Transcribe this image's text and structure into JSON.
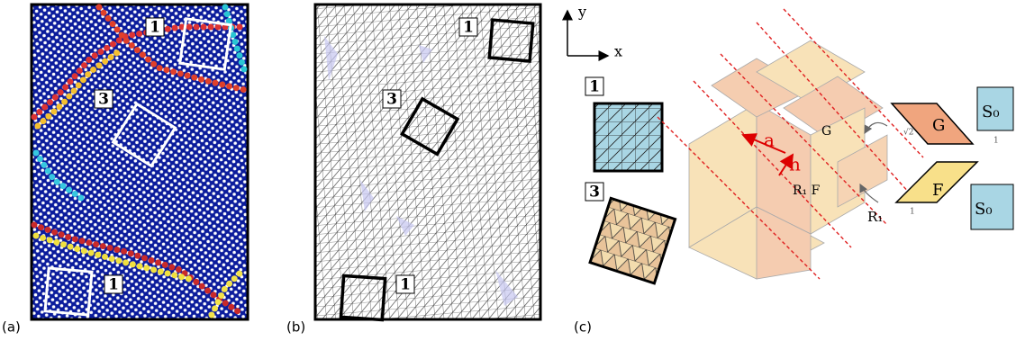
{
  "panels": [
    {
      "label": "(a)",
      "boxes": [
        "1",
        "3",
        "1"
      ]
    },
    {
      "label": "(b)",
      "boxes": [
        "1",
        "3",
        "1"
      ]
    },
    {
      "label": "(c)",
      "axes": {
        "y": "y",
        "x": "x"
      },
      "insets": [
        "1",
        "3"
      ],
      "vectors": {
        "a": "a",
        "n": "n"
      },
      "surface_labels": {
        "g": "G",
        "rf": "R₁ F",
        "r": "R₁"
      },
      "cells": {
        "g": "G",
        "f": "F",
        "s0_top": "S₀",
        "s0_bottom": "S₀",
        "one": "1",
        "sqrt2": "√2"
      }
    }
  ]
}
